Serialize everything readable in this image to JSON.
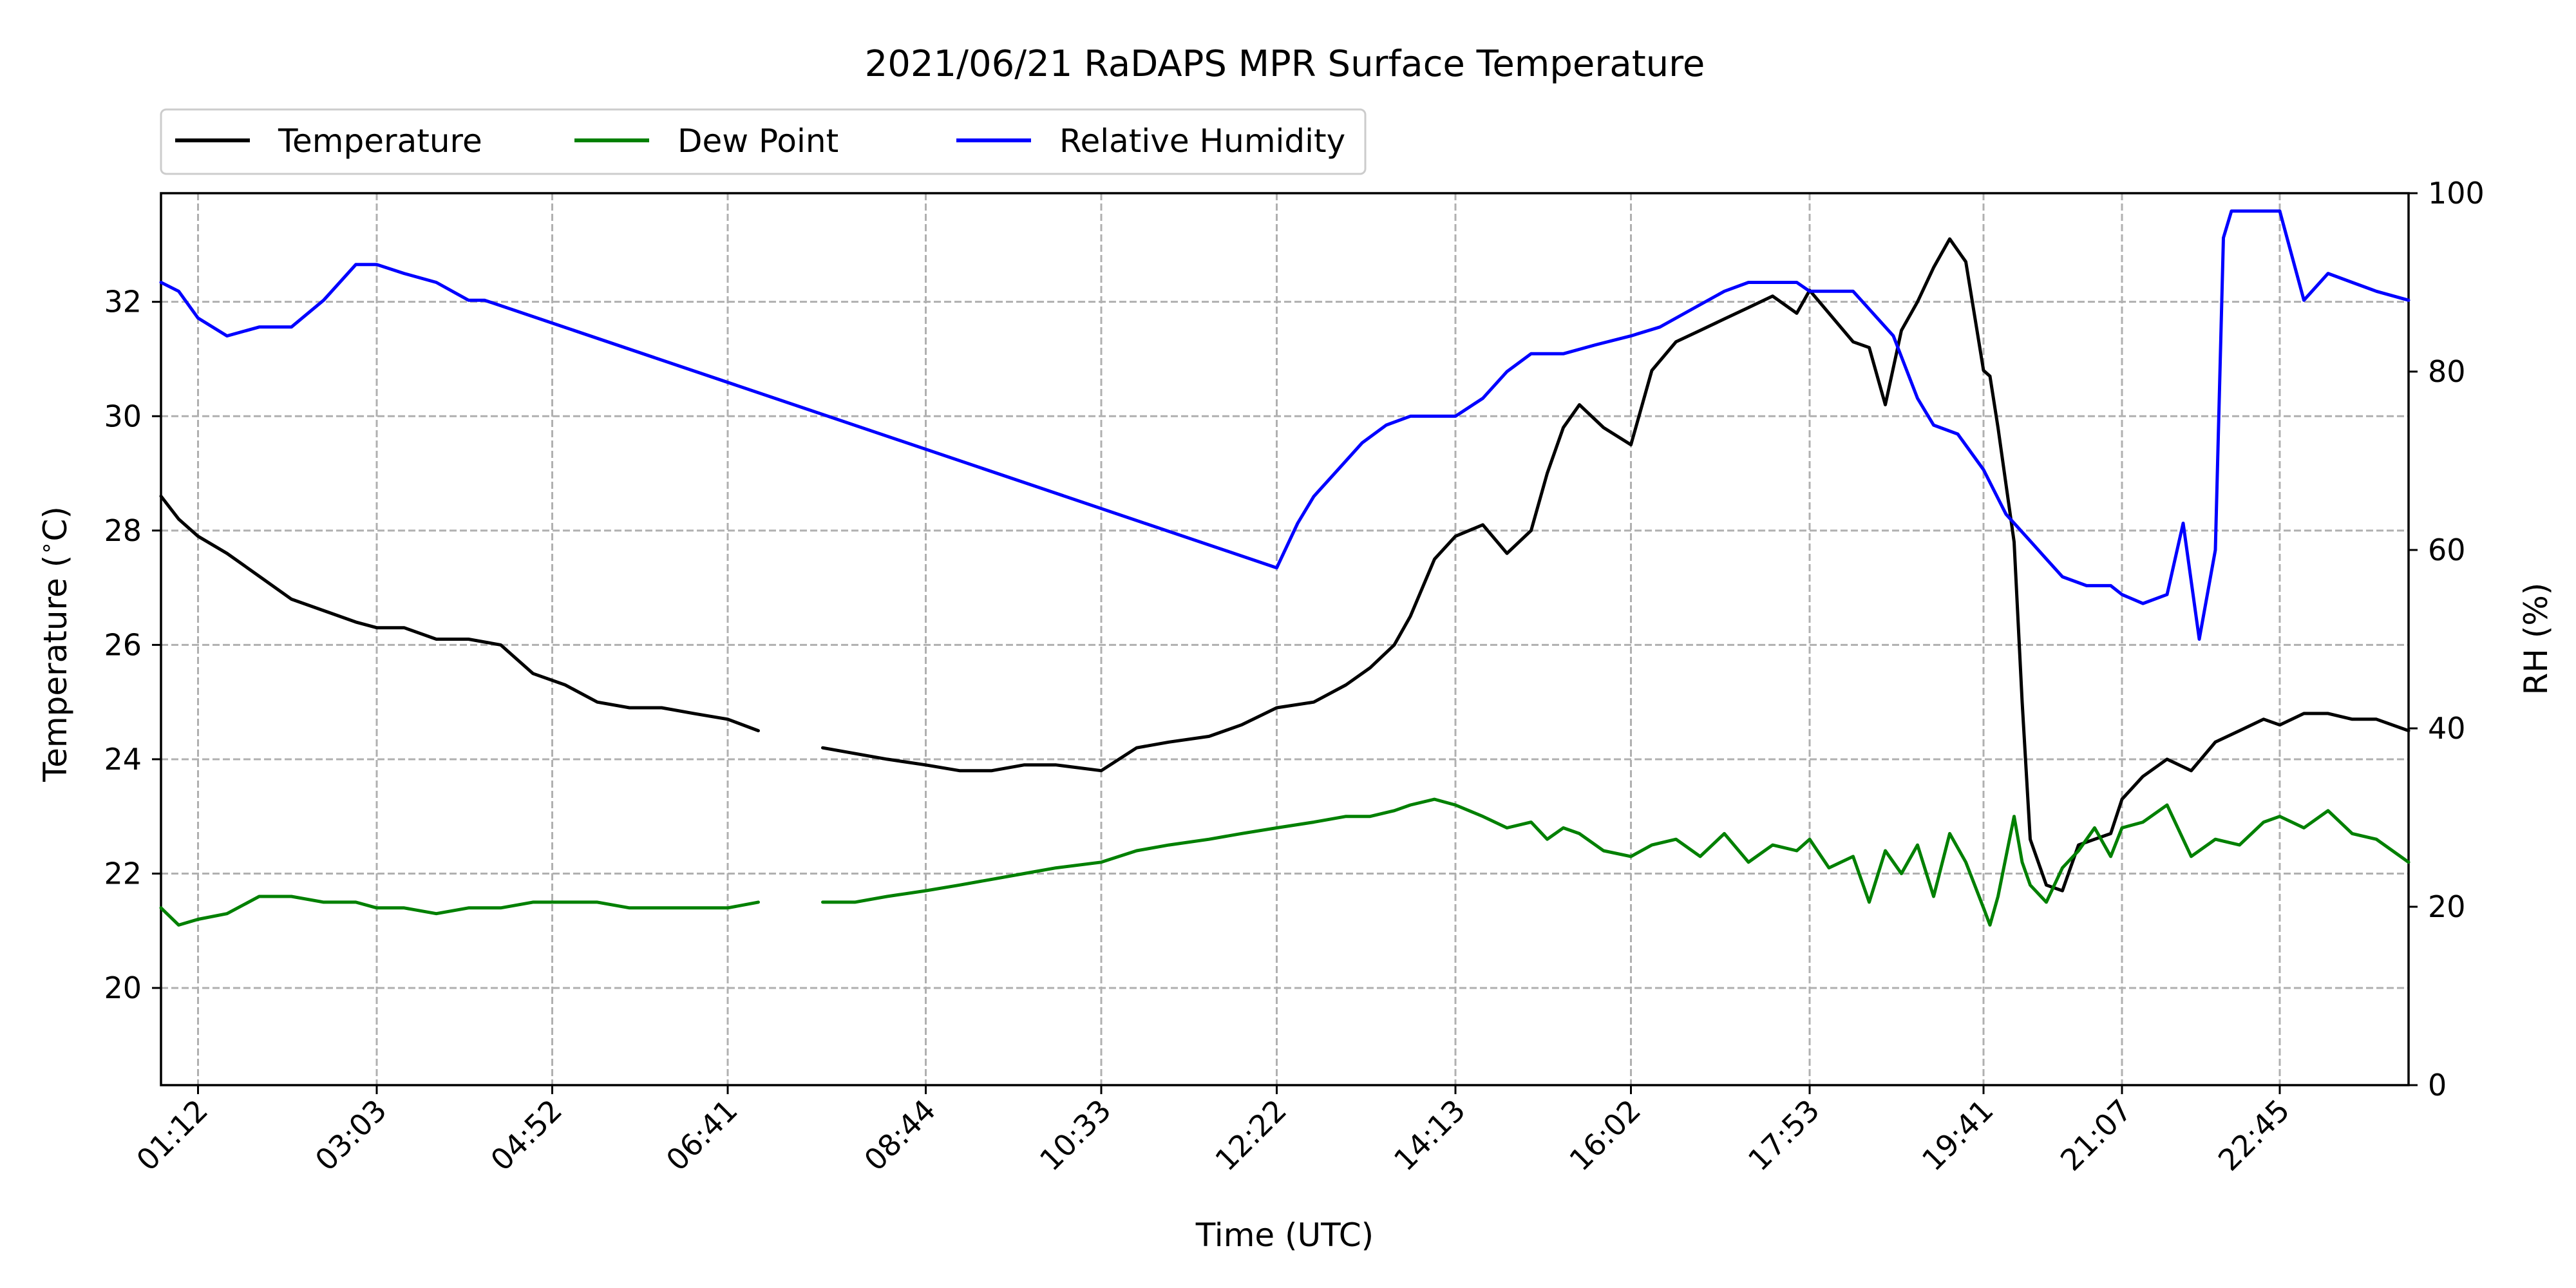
{
  "chart_data": {
    "type": "line",
    "title": "2021/06/21 RaDAPS MPR Surface Temperature",
    "xlabel": "Time (UTC)",
    "ylabel": "Temperature ($^\\circ$C)",
    "ylabel_parts": [
      "Temperature (",
      "∘",
      "C)"
    ],
    "y2label": "RH (%)",
    "x_ticks": [
      "01:12",
      "03:03",
      "04:52",
      "06:41",
      "08:44",
      "10:33",
      "12:22",
      "14:13",
      "16:02",
      "17:53",
      "19:41",
      "21:07",
      "22:45"
    ],
    "xlim": [
      "00:49",
      "24:05"
    ],
    "ylim": [
      18.3,
      33.9
    ],
    "y_ticks": [
      20,
      22,
      24,
      26,
      28,
      30,
      32
    ],
    "y2lim": [
      0,
      100
    ],
    "y2_ticks": [
      0,
      20,
      40,
      60,
      80,
      100
    ],
    "grid": true,
    "legend_position": "top-left, above axes",
    "colors": {
      "temperature": "#000000",
      "dew_point": "#008000",
      "relative_humidity": "#0000ff",
      "grid": "#b0b0b0"
    },
    "series": [
      {
        "name": "Temperature",
        "axis": "left",
        "color": "#000000",
        "x": [
          "00:49",
          "01:00",
          "01:12",
          "01:30",
          "01:50",
          "02:10",
          "02:30",
          "02:50",
          "03:03",
          "03:20",
          "03:40",
          "04:00",
          "04:20",
          "04:40",
          "05:00",
          "05:20",
          "05:40",
          "06:00",
          "06:20",
          "06:41",
          "07:00",
          "07:20",
          "07:40",
          "08:00",
          "08:20",
          "08:44",
          "09:05",
          "09:25",
          "09:45",
          "10:05",
          "10:33",
          "10:55",
          "11:15",
          "11:40",
          "12:00",
          "12:22",
          "12:45",
          "13:05",
          "13:20",
          "13:35",
          "13:45",
          "14:00",
          "14:13",
          "14:30",
          "14:45",
          "15:00",
          "15:10",
          "15:20",
          "15:30",
          "15:45",
          "16:02",
          "16:15",
          "16:30",
          "16:45",
          "17:00",
          "17:15",
          "17:30",
          "17:45",
          "17:53",
          "18:05",
          "18:20",
          "18:30",
          "18:40",
          "18:50",
          "19:00",
          "19:10",
          "19:20",
          "19:30",
          "19:41",
          "19:45",
          "19:50",
          "20:00",
          "20:05",
          "20:10",
          "20:20",
          "20:30",
          "20:40",
          "20:50",
          "21:00",
          "21:07",
          "21:20",
          "21:35",
          "21:50",
          "22:05",
          "22:20",
          "22:35",
          "22:45",
          "23:00",
          "23:15",
          "23:30",
          "23:45",
          "24:05"
        ],
        "values": [
          28.6,
          28.2,
          27.9,
          27.6,
          27.2,
          26.8,
          26.6,
          26.4,
          26.3,
          26.3,
          26.1,
          26.1,
          26.0,
          25.5,
          25.3,
          25.0,
          24.9,
          24.9,
          24.8,
          24.7,
          24.5,
          null,
          24.2,
          24.1,
          24.0,
          23.9,
          23.8,
          23.8,
          23.9,
          23.9,
          23.8,
          24.2,
          24.3,
          24.4,
          24.6,
          24.9,
          25.0,
          25.3,
          25.6,
          26.0,
          26.5,
          27.5,
          27.9,
          28.1,
          27.6,
          28.0,
          29.0,
          29.8,
          30.2,
          29.8,
          29.5,
          30.8,
          31.3,
          31.5,
          31.7,
          31.9,
          32.1,
          31.8,
          32.2,
          31.8,
          31.3,
          31.2,
          30.2,
          31.5,
          32.0,
          32.6,
          33.1,
          32.7,
          30.8,
          30.7,
          29.8,
          27.8,
          25.0,
          22.6,
          21.8,
          21.7,
          22.5,
          22.6,
          22.7,
          23.3,
          23.7,
          24.0,
          23.8,
          24.3,
          24.5,
          24.7,
          24.6,
          24.8,
          24.8,
          24.7,
          24.7,
          24.5
        ]
      },
      {
        "name": "Dew Point",
        "axis": "left",
        "color": "#008000",
        "x": [
          "00:49",
          "01:00",
          "01:12",
          "01:30",
          "01:50",
          "02:10",
          "02:30",
          "02:50",
          "03:03",
          "03:20",
          "03:40",
          "04:00",
          "04:20",
          "04:40",
          "05:00",
          "05:20",
          "05:40",
          "06:00",
          "06:20",
          "06:41",
          "07:00",
          "07:20",
          "07:40",
          "08:00",
          "08:20",
          "08:44",
          "09:05",
          "09:25",
          "09:45",
          "10:05",
          "10:33",
          "10:55",
          "11:15",
          "11:40",
          "12:00",
          "12:22",
          "12:45",
          "13:05",
          "13:20",
          "13:35",
          "13:45",
          "14:00",
          "14:13",
          "14:30",
          "14:45",
          "15:00",
          "15:10",
          "15:20",
          "15:30",
          "15:45",
          "16:02",
          "16:15",
          "16:30",
          "16:45",
          "17:00",
          "17:15",
          "17:30",
          "17:45",
          "17:53",
          "18:05",
          "18:20",
          "18:30",
          "18:40",
          "18:50",
          "19:00",
          "19:10",
          "19:20",
          "19:30",
          "19:41",
          "19:45",
          "19:50",
          "20:00",
          "20:05",
          "20:10",
          "20:20",
          "20:30",
          "20:40",
          "20:50",
          "21:00",
          "21:07",
          "21:20",
          "21:35",
          "21:50",
          "22:05",
          "22:20",
          "22:35",
          "22:45",
          "23:00",
          "23:15",
          "23:30",
          "23:45",
          "24:05"
        ],
        "values": [
          21.4,
          21.1,
          21.2,
          21.3,
          21.6,
          21.6,
          21.5,
          21.5,
          21.4,
          21.4,
          21.3,
          21.4,
          21.4,
          21.5,
          21.5,
          21.5,
          21.4,
          21.4,
          21.4,
          21.4,
          21.5,
          null,
          21.5,
          21.5,
          21.6,
          21.7,
          21.8,
          21.9,
          22.0,
          22.1,
          22.2,
          22.4,
          22.5,
          22.6,
          22.7,
          22.8,
          22.9,
          23.0,
          23.0,
          23.1,
          23.2,
          23.3,
          23.2,
          23.0,
          22.8,
          22.9,
          22.6,
          22.8,
          22.7,
          22.4,
          22.3,
          22.5,
          22.6,
          22.3,
          22.7,
          22.2,
          22.5,
          22.4,
          22.6,
          22.1,
          22.3,
          21.5,
          22.4,
          22.0,
          22.5,
          21.6,
          22.7,
          22.2,
          21.4,
          21.1,
          21.6,
          23.0,
          22.2,
          21.8,
          21.5,
          22.1,
          22.4,
          22.8,
          22.3,
          22.8,
          22.9,
          23.2,
          22.3,
          22.6,
          22.5,
          22.9,
          23.0,
          22.8,
          23.1,
          22.7,
          22.6,
          22.2
        ]
      },
      {
        "name": "Relative Humidity",
        "axis": "right",
        "color": "#0000ff",
        "x": [
          "00:49",
          "01:00",
          "01:12",
          "01:30",
          "01:50",
          "02:10",
          "02:30",
          "02:50",
          "03:03",
          "03:20",
          "03:40",
          "04:00",
          "04:10",
          "12:22",
          "12:35",
          "12:45",
          "13:00",
          "13:15",
          "13:30",
          "13:45",
          "14:00",
          "14:13",
          "14:30",
          "14:45",
          "15:00",
          "15:20",
          "15:40",
          "16:02",
          "16:20",
          "16:40",
          "17:00",
          "17:15",
          "17:30",
          "17:45",
          "17:53",
          "18:05",
          "18:20",
          "18:30",
          "18:45",
          "19:00",
          "19:10",
          "19:25",
          "19:41",
          "19:55",
          "20:10",
          "20:20",
          "20:30",
          "20:45",
          "21:00",
          "21:07",
          "21:20",
          "21:35",
          "21:45",
          "21:55",
          "22:05",
          "22:10",
          "22:15",
          "22:20",
          "22:35",
          "22:45",
          "23:00",
          "23:15",
          "23:30",
          "23:45",
          "24:05"
        ],
        "values": [
          90,
          89,
          86,
          84,
          85,
          85,
          88,
          92,
          92,
          91,
          90,
          88,
          88,
          58,
          63,
          66,
          69,
          72,
          74,
          75,
          75,
          75,
          77,
          80,
          82,
          82,
          83,
          84,
          85,
          87,
          89,
          90,
          90,
          90,
          89,
          89,
          89,
          87,
          84,
          77,
          74,
          73,
          69,
          64,
          61,
          59,
          57,
          56,
          56,
          55,
          54,
          55,
          63,
          50,
          60,
          95,
          98,
          98,
          98,
          98,
          88,
          91,
          90,
          89,
          88
        ]
      }
    ]
  }
}
